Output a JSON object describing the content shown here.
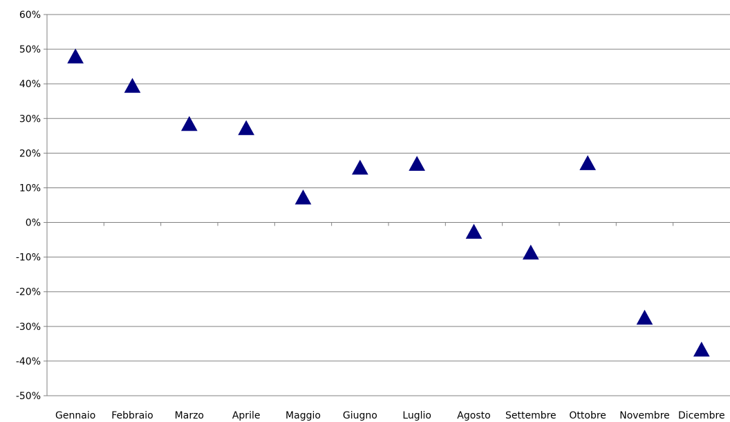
{
  "chart_data": {
    "type": "scatter",
    "marker": "triangle",
    "title": "",
    "xlabel": "",
    "ylabel": "",
    "grid": true,
    "categories": [
      "Gennaio",
      "Febbraio",
      "Marzo",
      "Aprile",
      "Maggio",
      "Giugno",
      "Luglio",
      "Agosto",
      "Settembre",
      "Ottobre",
      "Novembre",
      "Dicembre"
    ],
    "series": [
      {
        "values": [
          48,
          39.5,
          28.5,
          27.3,
          7.3,
          15.9,
          17,
          -2.6,
          -8.6,
          17.2,
          -27.4,
          -36.6
        ]
      }
    ],
    "ylim": [
      -50,
      60
    ],
    "ytick_step": 10,
    "ytick_labels": [
      "60%",
      "50%",
      "40%",
      "30%",
      "20%",
      "10%",
      "0%",
      "-10%",
      "-20%",
      "-30%",
      "-40%",
      "-50%"
    ],
    "colors": {
      "marker": "#000080",
      "grid": "#808080"
    }
  }
}
